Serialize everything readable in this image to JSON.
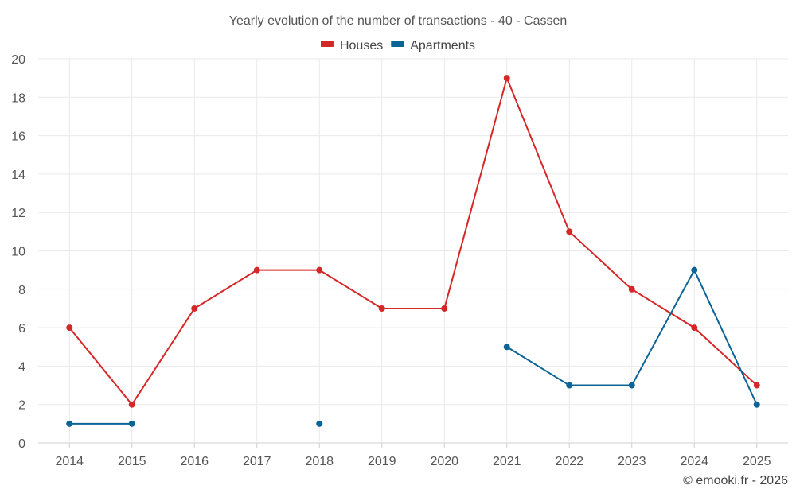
{
  "chart_data": {
    "type": "line",
    "title": "Yearly evolution of the number of transactions - 40 - Cassen",
    "xlabel": "",
    "ylabel": "",
    "categories": [
      "2014",
      "2015",
      "2016",
      "2017",
      "2018",
      "2019",
      "2020",
      "2021",
      "2022",
      "2023",
      "2024",
      "2025"
    ],
    "ylim": [
      0,
      20
    ],
    "yticks": [
      0,
      2,
      4,
      6,
      8,
      10,
      12,
      14,
      16,
      18,
      20
    ],
    "grid": true,
    "legend_position": "top-center",
    "series": [
      {
        "name": "Houses",
        "color": "#d62728",
        "values": [
          6,
          2,
          7,
          9,
          9,
          7,
          7,
          19,
          11,
          8,
          6,
          3
        ]
      },
      {
        "name": "Apartments",
        "color": "#0b6496",
        "values": [
          1,
          1,
          null,
          null,
          1,
          null,
          null,
          5,
          3,
          3,
          9,
          2
        ]
      }
    ]
  },
  "credit": "© emooki.fr - 2026"
}
